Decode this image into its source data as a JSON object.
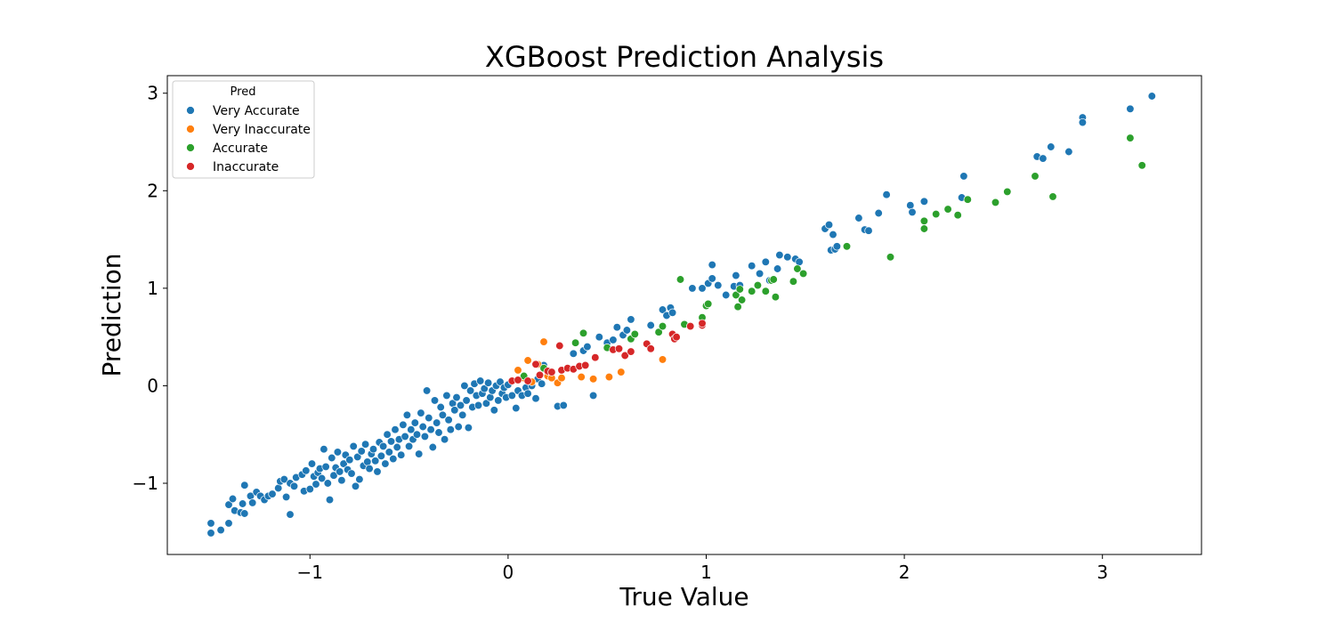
{
  "chart_data": {
    "type": "scatter",
    "title": "XGBoost Prediction Analysis",
    "xlabel": "True Value",
    "ylabel": "Prediction",
    "xlim": [
      -1.72,
      3.5
    ],
    "ylim": [
      -1.73,
      3.18
    ],
    "xticks": [
      -1,
      0,
      1,
      2,
      3
    ],
    "yticks": [
      -1,
      0,
      1,
      2,
      3
    ],
    "grid": false,
    "legend": {
      "title": "Pred",
      "placement": "top-left"
    },
    "series": [
      {
        "name": "Very Accurate",
        "color": "#1f77b4",
        "points": [
          [
            -1.5,
            -1.51
          ],
          [
            -1.5,
            -1.41
          ],
          [
            -1.45,
            -1.48
          ],
          [
            -1.41,
            -1.41
          ],
          [
            -1.41,
            -1.22
          ],
          [
            -1.39,
            -1.16
          ],
          [
            -1.38,
            -1.28
          ],
          [
            -1.35,
            -1.3
          ],
          [
            -1.34,
            -1.21
          ],
          [
            -1.33,
            -1.02
          ],
          [
            -1.33,
            -1.31
          ],
          [
            -1.3,
            -1.13
          ],
          [
            -1.29,
            -1.2
          ],
          [
            -1.27,
            -1.09
          ],
          [
            -1.25,
            -1.13
          ],
          [
            -1.23,
            -1.17
          ],
          [
            -1.21,
            -1.13
          ],
          [
            -1.19,
            -1.11
          ],
          [
            -1.16,
            -1.05
          ],
          [
            -1.15,
            -0.98
          ],
          [
            -1.13,
            -0.96
          ],
          [
            -1.12,
            -1.14
          ],
          [
            -1.1,
            -1.32
          ],
          [
            -1.1,
            -1.0
          ],
          [
            -1.08,
            -1.03
          ],
          [
            -1.07,
            -0.94
          ],
          [
            -1.04,
            -0.91
          ],
          [
            -1.03,
            -1.08
          ],
          [
            -1.02,
            -0.87
          ],
          [
            -1.0,
            -1.06
          ],
          [
            -0.99,
            -0.8
          ],
          [
            -0.98,
            -0.93
          ],
          [
            -0.97,
            -1.01
          ],
          [
            -0.96,
            -0.89
          ],
          [
            -0.95,
            -0.85
          ],
          [
            -0.94,
            -0.95
          ],
          [
            -0.93,
            -0.65
          ],
          [
            -0.92,
            -0.83
          ],
          [
            -0.91,
            -1.0
          ],
          [
            -0.9,
            -1.17
          ],
          [
            -0.89,
            -0.74
          ],
          [
            -0.88,
            -0.92
          ],
          [
            -0.87,
            -0.84
          ],
          [
            -0.86,
            -0.68
          ],
          [
            -0.85,
            -0.88
          ],
          [
            -0.84,
            -0.97
          ],
          [
            -0.83,
            -0.8
          ],
          [
            -0.82,
            -0.71
          ],
          [
            -0.81,
            -0.86
          ],
          [
            -0.8,
            -0.76
          ],
          [
            -0.79,
            -0.9
          ],
          [
            -0.78,
            -0.62
          ],
          [
            -0.77,
            -1.03
          ],
          [
            -0.76,
            -0.73
          ],
          [
            -0.75,
            -0.96
          ],
          [
            -0.74,
            -0.67
          ],
          [
            -0.73,
            -0.82
          ],
          [
            -0.72,
            -0.6
          ],
          [
            -0.71,
            -0.78
          ],
          [
            -0.7,
            -0.85
          ],
          [
            -0.69,
            -0.7
          ],
          [
            -0.68,
            -0.65
          ],
          [
            -0.67,
            -0.77
          ],
          [
            -0.66,
            -0.88
          ],
          [
            -0.65,
            -0.58
          ],
          [
            -0.64,
            -0.72
          ],
          [
            -0.63,
            -0.62
          ],
          [
            -0.62,
            -0.8
          ],
          [
            -0.61,
            -0.5
          ],
          [
            -0.6,
            -0.68
          ],
          [
            -0.59,
            -0.57
          ],
          [
            -0.58,
            -0.75
          ],
          [
            -0.57,
            -0.45
          ],
          [
            -0.56,
            -0.63
          ],
          [
            -0.55,
            -0.55
          ],
          [
            -0.54,
            -0.71
          ],
          [
            -0.53,
            -0.4
          ],
          [
            -0.52,
            -0.52
          ],
          [
            -0.51,
            -0.3
          ],
          [
            -0.5,
            -0.62
          ],
          [
            -0.49,
            -0.45
          ],
          [
            -0.48,
            -0.55
          ],
          [
            -0.47,
            -0.38
          ],
          [
            -0.46,
            -0.5
          ],
          [
            -0.45,
            -0.7
          ],
          [
            -0.44,
            -0.28
          ],
          [
            -0.43,
            -0.42
          ],
          [
            -0.42,
            -0.52
          ],
          [
            -0.41,
            -0.05
          ],
          [
            -0.4,
            -0.33
          ],
          [
            -0.39,
            -0.45
          ],
          [
            -0.38,
            -0.63
          ],
          [
            -0.37,
            -0.15
          ],
          [
            -0.36,
            -0.38
          ],
          [
            -0.35,
            -0.48
          ],
          [
            -0.34,
            -0.22
          ],
          [
            -0.33,
            -0.3
          ],
          [
            -0.32,
            -0.55
          ],
          [
            -0.31,
            -0.1
          ],
          [
            -0.3,
            -0.35
          ],
          [
            -0.29,
            -0.45
          ],
          [
            -0.28,
            -0.18
          ],
          [
            -0.27,
            -0.25
          ],
          [
            -0.26,
            -0.12
          ],
          [
            -0.25,
            -0.42
          ],
          [
            -0.24,
            -0.2
          ],
          [
            -0.23,
            -0.3
          ],
          [
            -0.22,
            -0.0
          ],
          [
            -0.21,
            -0.15
          ],
          [
            -0.2,
            -0.43
          ],
          [
            -0.19,
            -0.05
          ],
          [
            -0.18,
            -0.22
          ],
          [
            -0.17,
            0.02
          ],
          [
            -0.16,
            -0.1
          ],
          [
            -0.15,
            -0.2
          ],
          [
            -0.14,
            0.05
          ],
          [
            -0.13,
            -0.08
          ],
          [
            -0.12,
            -0.03
          ],
          [
            -0.11,
            -0.18
          ],
          [
            -0.1,
            0.03
          ],
          [
            -0.09,
            -0.12
          ],
          [
            -0.08,
            -0.05
          ],
          [
            -0.07,
            -0.25
          ],
          [
            -0.06,
            0.0
          ],
          [
            -0.05,
            -0.15
          ],
          [
            -0.04,
            0.04
          ],
          [
            -0.03,
            -0.08
          ],
          [
            -0.02,
            -0.02
          ],
          [
            -0.01,
            -0.12
          ],
          [
            0.0,
            0.01
          ],
          [
            0.02,
            -0.1
          ],
          [
            0.04,
            -0.23
          ],
          [
            0.05,
            -0.05
          ],
          [
            0.07,
            -0.1
          ],
          [
            0.09,
            -0.02
          ],
          [
            0.1,
            -0.08
          ],
          [
            0.12,
            -0.0
          ],
          [
            0.14,
            -0.13
          ],
          [
            0.15,
            0.07
          ],
          [
            0.17,
            0.02
          ],
          [
            0.18,
            0.21
          ],
          [
            0.2,
            0.1
          ],
          [
            0.25,
            -0.21
          ],
          [
            0.28,
            -0.2
          ],
          [
            0.33,
            0.33
          ],
          [
            0.38,
            0.36
          ],
          [
            0.4,
            0.4
          ],
          [
            0.43,
            -0.1
          ],
          [
            0.46,
            0.5
          ],
          [
            0.5,
            0.44
          ],
          [
            0.53,
            0.47
          ],
          [
            0.55,
            0.6
          ],
          [
            0.58,
            0.52
          ],
          [
            0.6,
            0.57
          ],
          [
            0.62,
            0.68
          ],
          [
            0.72,
            0.62
          ],
          [
            0.78,
            0.78
          ],
          [
            0.8,
            0.72
          ],
          [
            0.82,
            0.8
          ],
          [
            0.83,
            0.75
          ],
          [
            0.93,
            1.0
          ],
          [
            0.98,
            1.0
          ],
          [
            1.01,
            1.05
          ],
          [
            1.03,
            1.24
          ],
          [
            1.03,
            1.1
          ],
          [
            1.06,
            1.03
          ],
          [
            1.1,
            0.93
          ],
          [
            1.14,
            1.02
          ],
          [
            1.15,
            1.13
          ],
          [
            1.17,
            1.03
          ],
          [
            1.23,
            1.23
          ],
          [
            1.27,
            1.15
          ],
          [
            1.3,
            1.27
          ],
          [
            1.32,
            1.08
          ],
          [
            1.36,
            1.2
          ],
          [
            1.37,
            1.34
          ],
          [
            1.41,
            1.32
          ],
          [
            1.45,
            1.3
          ],
          [
            1.47,
            1.27
          ],
          [
            1.6,
            1.61
          ],
          [
            1.62,
            1.65
          ],
          [
            1.63,
            1.39
          ],
          [
            1.64,
            1.55
          ],
          [
            1.65,
            1.4
          ],
          [
            1.66,
            1.43
          ],
          [
            1.77,
            1.72
          ],
          [
            1.8,
            1.6
          ],
          [
            1.82,
            1.59
          ],
          [
            1.87,
            1.77
          ],
          [
            1.91,
            1.96
          ],
          [
            2.03,
            1.85
          ],
          [
            2.04,
            1.78
          ],
          [
            2.1,
            1.89
          ],
          [
            2.29,
            1.93
          ],
          [
            2.3,
            2.15
          ],
          [
            2.67,
            2.35
          ],
          [
            2.7,
            2.33
          ],
          [
            2.74,
            2.45
          ],
          [
            2.83,
            2.4
          ],
          [
            2.9,
            2.75
          ],
          [
            2.9,
            2.7
          ],
          [
            3.14,
            2.84
          ],
          [
            3.25,
            2.97
          ]
        ]
      },
      {
        "name": "Very Inaccurate",
        "color": "#ff7f0e",
        "points": [
          [
            0.05,
            0.16
          ],
          [
            0.08,
            0.08
          ],
          [
            0.1,
            0.26
          ],
          [
            0.12,
            0.04
          ],
          [
            0.15,
            0.22
          ],
          [
            0.18,
            0.45
          ],
          [
            0.2,
            0.1
          ],
          [
            0.22,
            0.08
          ],
          [
            0.25,
            0.03
          ],
          [
            0.27,
            0.08
          ],
          [
            0.37,
            0.09
          ],
          [
            0.43,
            0.07
          ],
          [
            0.51,
            0.09
          ],
          [
            0.57,
            0.14
          ],
          [
            0.78,
            0.27
          ]
        ]
      },
      {
        "name": "Accurate",
        "color": "#2ca02c",
        "points": [
          [
            0.08,
            0.1
          ],
          [
            0.18,
            0.18
          ],
          [
            0.34,
            0.44
          ],
          [
            0.38,
            0.54
          ],
          [
            0.5,
            0.39
          ],
          [
            0.62,
            0.48
          ],
          [
            0.64,
            0.53
          ],
          [
            0.76,
            0.55
          ],
          [
            0.78,
            0.61
          ],
          [
            0.87,
            1.09
          ],
          [
            0.89,
            0.63
          ],
          [
            0.98,
            0.7
          ],
          [
            1.0,
            0.82
          ],
          [
            1.01,
            0.84
          ],
          [
            1.15,
            0.93
          ],
          [
            1.16,
            0.81
          ],
          [
            1.17,
            0.99
          ],
          [
            1.18,
            0.88
          ],
          [
            1.23,
            0.97
          ],
          [
            1.26,
            1.03
          ],
          [
            1.3,
            0.97
          ],
          [
            1.33,
            1.08
          ],
          [
            1.34,
            1.09
          ],
          [
            1.35,
            0.91
          ],
          [
            1.44,
            1.07
          ],
          [
            1.46,
            1.2
          ],
          [
            1.49,
            1.15
          ],
          [
            1.71,
            1.43
          ],
          [
            1.93,
            1.32
          ],
          [
            2.1,
            1.69
          ],
          [
            2.1,
            1.61
          ],
          [
            2.16,
            1.76
          ],
          [
            2.22,
            1.81
          ],
          [
            2.27,
            1.75
          ],
          [
            2.32,
            1.91
          ],
          [
            2.46,
            1.88
          ],
          [
            2.52,
            1.99
          ],
          [
            2.66,
            2.15
          ],
          [
            2.75,
            1.94
          ],
          [
            3.14,
            2.54
          ],
          [
            3.2,
            2.26
          ]
        ]
      },
      {
        "name": "Inaccurate",
        "color": "#d62728",
        "points": [
          [
            0.02,
            0.05
          ],
          [
            0.05,
            0.06
          ],
          [
            0.1,
            0.05
          ],
          [
            0.14,
            0.22
          ],
          [
            0.16,
            0.11
          ],
          [
            0.2,
            0.15
          ],
          [
            0.22,
            0.14
          ],
          [
            0.26,
            0.41
          ],
          [
            0.27,
            0.16
          ],
          [
            0.3,
            0.18
          ],
          [
            0.33,
            0.17
          ],
          [
            0.36,
            0.2
          ],
          [
            0.39,
            0.21
          ],
          [
            0.44,
            0.29
          ],
          [
            0.53,
            0.37
          ],
          [
            0.56,
            0.38
          ],
          [
            0.59,
            0.31
          ],
          [
            0.62,
            0.35
          ],
          [
            0.7,
            0.43
          ],
          [
            0.72,
            0.38
          ],
          [
            0.83,
            0.53
          ],
          [
            0.84,
            0.48
          ],
          [
            0.85,
            0.5
          ],
          [
            0.92,
            0.61
          ],
          [
            0.98,
            0.62
          ],
          [
            0.98,
            0.64
          ]
        ]
      }
    ]
  }
}
